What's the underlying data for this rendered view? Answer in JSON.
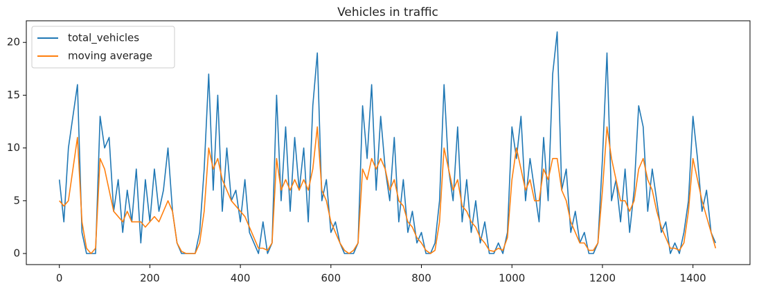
{
  "chart_data": {
    "type": "line",
    "title": "Vehicles in traffic",
    "x": [
      0,
      10,
      20,
      30,
      40,
      50,
      60,
      70,
      80,
      90,
      100,
      110,
      120,
      130,
      140,
      150,
      160,
      170,
      180,
      190,
      200,
      210,
      220,
      230,
      240,
      250,
      260,
      270,
      280,
      290,
      300,
      310,
      320,
      330,
      340,
      350,
      360,
      370,
      380,
      390,
      400,
      410,
      420,
      430,
      440,
      450,
      460,
      470,
      480,
      490,
      500,
      510,
      520,
      530,
      540,
      550,
      560,
      570,
      580,
      590,
      600,
      610,
      620,
      630,
      640,
      650,
      660,
      670,
      680,
      690,
      700,
      710,
      720,
      730,
      740,
      750,
      760,
      770,
      780,
      790,
      800,
      810,
      820,
      830,
      840,
      850,
      860,
      870,
      880,
      890,
      900,
      910,
      920,
      930,
      940,
      950,
      960,
      970,
      980,
      990,
      1000,
      1010,
      1020,
      1030,
      1040,
      1050,
      1060,
      1070,
      1080,
      1090,
      1100,
      1110,
      1120,
      1130,
      1140,
      1150,
      1160,
      1170,
      1180,
      1190,
      1200,
      1210,
      1220,
      1230,
      1240,
      1250,
      1260,
      1270,
      1280,
      1290,
      1300,
      1310,
      1320,
      1330,
      1340,
      1350,
      1360,
      1370,
      1380,
      1390,
      1400,
      1410,
      1420,
      1430,
      1440,
      1450
    ],
    "series": [
      {
        "name": "total_vehicles",
        "color": "#1f77b4",
        "values": [
          7,
          3,
          10,
          13,
          16,
          2,
          0,
          0,
          0,
          13,
          10,
          11,
          4,
          7,
          2,
          6,
          3,
          8,
          1,
          7,
          3,
          8,
          4,
          6,
          10,
          4,
          1,
          0,
          0,
          0,
          0,
          2,
          8,
          17,
          6,
          15,
          4,
          10,
          5,
          6,
          3,
          7,
          2,
          1,
          0,
          3,
          0,
          1,
          15,
          5,
          12,
          4,
          11,
          6,
          10,
          3,
          14,
          19,
          5,
          7,
          2,
          3,
          1,
          0,
          0,
          0,
          1,
          14,
          9,
          16,
          6,
          13,
          8,
          5,
          11,
          3,
          7,
          2,
          4,
          1,
          2,
          0,
          0,
          1,
          5,
          16,
          8,
          5,
          12,
          3,
          7,
          2,
          5,
          1,
          3,
          0,
          0,
          1,
          0,
          2,
          12,
          9,
          13,
          5,
          9,
          6,
          3,
          11,
          5,
          17,
          21,
          6,
          8,
          2,
          4,
          1,
          2,
          0,
          0,
          1,
          9,
          19,
          5,
          7,
          3,
          8,
          2,
          6,
          14,
          12,
          4,
          8,
          5,
          2,
          3,
          0,
          1,
          0,
          2,
          5,
          13,
          9,
          4,
          6,
          2,
          1
        ]
      },
      {
        "name": "moving average",
        "color": "#ff7f0e",
        "values": [
          5,
          4.5,
          5,
          8,
          11,
          3,
          0.5,
          0,
          0.5,
          9,
          8,
          6,
          4,
          3.5,
          3,
          4,
          3,
          3,
          3,
          2.5,
          3,
          3.5,
          3,
          4,
          5,
          4,
          1,
          0.2,
          0,
          0,
          0,
          1,
          4,
          10,
          8,
          9,
          7,
          6,
          5,
          4.5,
          4,
          3.5,
          2.5,
          1.5,
          0.5,
          0.5,
          0.3,
          1,
          9,
          6,
          7,
          6,
          7,
          6,
          7,
          6,
          8,
          12,
          6,
          5,
          3,
          2,
          1,
          0.3,
          0,
          0.3,
          1,
          8,
          7,
          9,
          8,
          9,
          8,
          6,
          7,
          5,
          4.5,
          3,
          2.5,
          1.5,
          1,
          0.3,
          0,
          0.3,
          3,
          10,
          8,
          6,
          7,
          4.5,
          4,
          3,
          2.5,
          1.5,
          1,
          0.3,
          0.2,
          0.5,
          0.3,
          1.5,
          7,
          10,
          8,
          6,
          7,
          5,
          5,
          8,
          7,
          9,
          9,
          6,
          5,
          3,
          2,
          1,
          1,
          0.3,
          0.3,
          1,
          6,
          12,
          9,
          7,
          5,
          5,
          4,
          5,
          8,
          9,
          7,
          6,
          4,
          2.5,
          1.5,
          0.5,
          0.5,
          0.3,
          1,
          4,
          9,
          7,
          5,
          3.5,
          2,
          0.5
        ]
      }
    ],
    "xlim": [
      -73,
      1526
    ],
    "ylim": [
      -1.05,
      22.05
    ],
    "xticks": [
      0,
      200,
      400,
      600,
      800,
      1000,
      1200,
      1400
    ],
    "yticks": [
      0,
      5,
      10,
      15,
      20
    ],
    "legend": "upper left"
  }
}
